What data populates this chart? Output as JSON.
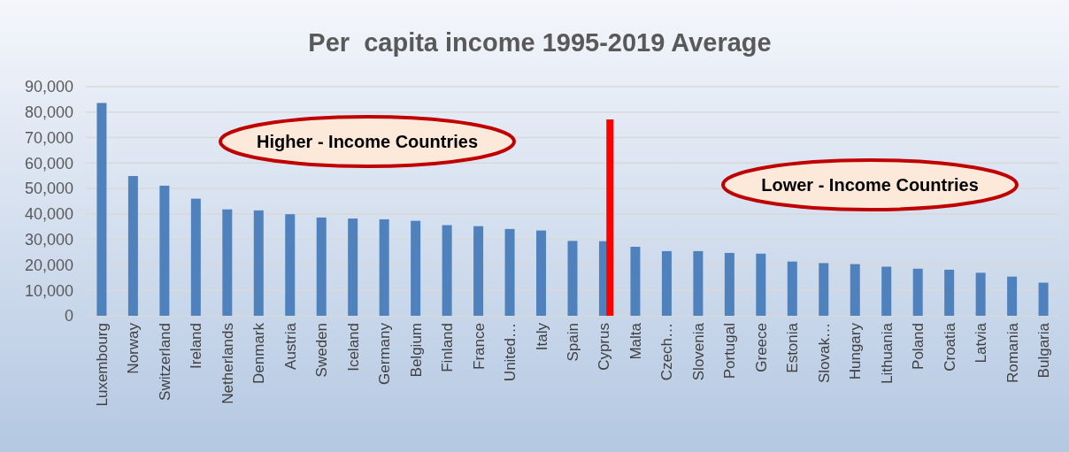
{
  "chart_data": {
    "type": "bar",
    "title": "Per  capita income 1995-2019 Average",
    "categories": [
      "Luxembourg",
      "Norway",
      "Switzerland",
      "Ireland",
      "Netherlands",
      "Denmark",
      "Austria",
      "Sweden",
      "Iceland",
      "Germany",
      "Belgium",
      "Finland",
      "France",
      "United…",
      "Italy",
      "Spain",
      "Cyprus",
      "Malta",
      "Czech…",
      "Slovenia",
      "Portugal",
      "Greece",
      "Estonia",
      "Slovak…",
      "Hungary",
      "Lithuania",
      "Poland",
      "Croatia",
      "Latvia",
      "Romania",
      "Bulgaria"
    ],
    "values": [
      83600,
      54900,
      51100,
      46000,
      41800,
      41400,
      39900,
      38600,
      38200,
      37900,
      37300,
      35600,
      35200,
      34100,
      33500,
      29400,
      29300,
      27100,
      25400,
      25400,
      24700,
      24400,
      21300,
      20700,
      20300,
      19300,
      18500,
      18100,
      16900,
      15400,
      13000
    ],
    "color": "#4f81bd",
    "ylim": [
      0,
      90000
    ],
    "yticks": [
      {
        "value": 0,
        "label": "0"
      },
      {
        "value": 10000,
        "label": "10,000"
      },
      {
        "value": 20000,
        "label": "20,000"
      },
      {
        "value": 30000,
        "label": "30,000"
      },
      {
        "value": 40000,
        "label": "40,000"
      },
      {
        "value": 50000,
        "label": "50,000"
      },
      {
        "value": 60000,
        "label": "60,000"
      },
      {
        "value": 70000,
        "label": "70,000"
      },
      {
        "value": 80000,
        "label": "80,000"
      },
      {
        "value": 90000,
        "label": "90,000"
      }
    ],
    "grid": "y",
    "ref_lines": [
      {
        "axis": "x",
        "value": "Cyprus",
        "color": "#ff0000"
      }
    ],
    "annotations": [
      "Higher - Income Countries",
      "Lower - Income Countries"
    ]
  }
}
